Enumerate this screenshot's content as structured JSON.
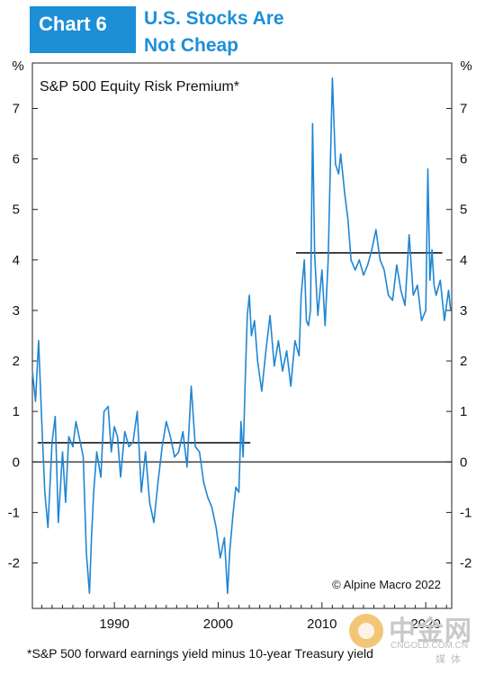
{
  "header": {
    "badge": "Chart 6",
    "title_line1": "U.S. Stocks Are",
    "title_line2": "Not Cheap"
  },
  "colors": {
    "accent": "#1d8fd6",
    "series": "#1f86d3",
    "average_line": "#1a1a1a"
  },
  "chart_data": {
    "type": "line",
    "title": "S&P 500 Equity Risk Premium*",
    "credit": "© Alpine Macro 2022",
    "left_unit": "%",
    "right_unit": "%",
    "xlim": [
      1982.1,
      2022.5
    ],
    "ylim": [
      -2.9,
      7.9
    ],
    "x_ticks": [
      1990,
      2000,
      2010,
      2020
    ],
    "y_ticks": [
      -2,
      -1,
      0,
      1,
      2,
      3,
      4,
      5,
      6,
      7
    ],
    "grid": false,
    "legend": "none",
    "series": [
      {
        "x": [
          1982.1,
          1982.4,
          1982.7,
          1983.0,
          1983.3,
          1983.6,
          1984.0,
          1984.3,
          1984.6,
          1985.0,
          1985.3,
          1985.6,
          1986.0,
          1986.3,
          1986.7,
          1987.0,
          1987.3,
          1987.6,
          1987.8,
          1988.0,
          1988.3,
          1988.7,
          1989.0,
          1989.4,
          1989.7,
          1990.0,
          1990.3,
          1990.6,
          1991.0,
          1991.4,
          1991.8,
          1992.2,
          1992.6,
          1993.0,
          1993.4,
          1993.8,
          1994.2,
          1994.6,
          1995.0,
          1995.4,
          1995.8,
          1996.2,
          1996.6,
          1997.0,
          1997.4,
          1997.8,
          1998.2,
          1998.6,
          1999.0,
          1999.4,
          1999.8,
          2000.2,
          2000.6,
          2000.9,
          2001.1,
          2001.4,
          2001.7,
          2002.0,
          2002.2,
          2002.4,
          2002.6,
          2002.8,
          2003.0,
          2003.2,
          2003.5,
          2003.8,
          2004.2,
          2004.6,
          2005.0,
          2005.4,
          2005.8,
          2006.2,
          2006.6,
          2007.0,
          2007.4,
          2007.8,
          2008.0,
          2008.3,
          2008.5,
          2008.7,
          2008.9,
          2009.1,
          2009.3,
          2009.6,
          2010.0,
          2010.3,
          2010.6,
          2011.0,
          2011.3,
          2011.6,
          2011.8,
          2012.0,
          2012.2,
          2012.5,
          2012.8,
          2013.2,
          2013.6,
          2014.0,
          2014.4,
          2014.8,
          2015.2,
          2015.6,
          2016.0,
          2016.4,
          2016.8,
          2017.2,
          2017.6,
          2018.0,
          2018.4,
          2018.8,
          2019.2,
          2019.6,
          2020.0,
          2020.2,
          2020.4,
          2020.6,
          2020.8,
          2021.0,
          2021.4,
          2021.8,
          2022.2,
          2022.4
        ],
        "y": [
          1.8,
          1.2,
          2.4,
          0.8,
          -0.6,
          -1.3,
          0.4,
          0.9,
          -1.2,
          0.2,
          -0.8,
          0.5,
          0.3,
          0.8,
          0.4,
          0.1,
          -1.8,
          -2.6,
          -1.5,
          -0.6,
          0.2,
          -0.3,
          1.0,
          1.1,
          0.2,
          0.7,
          0.5,
          -0.3,
          0.6,
          0.3,
          0.4,
          1.0,
          -0.6,
          0.2,
          -0.8,
          -1.2,
          -0.4,
          0.3,
          0.8,
          0.5,
          0.1,
          0.2,
          0.6,
          -0.1,
          1.5,
          0.3,
          0.2,
          -0.4,
          -0.7,
          -0.9,
          -1.3,
          -1.9,
          -1.5,
          -2.6,
          -1.8,
          -1.1,
          -0.5,
          -0.6,
          0.8,
          0.1,
          1.6,
          2.9,
          3.3,
          2.5,
          2.8,
          2.0,
          1.4,
          2.2,
          2.9,
          1.9,
          2.4,
          1.8,
          2.2,
          1.5,
          2.4,
          2.1,
          3.3,
          4.0,
          2.8,
          2.7,
          3.0,
          6.7,
          4.1,
          2.9,
          3.8,
          2.7,
          4.0,
          7.6,
          5.9,
          5.7,
          6.1,
          5.7,
          5.3,
          4.8,
          4.0,
          3.8,
          4.0,
          3.7,
          3.9,
          4.2,
          4.6,
          4.0,
          3.8,
          3.3,
          3.2,
          3.9,
          3.4,
          3.1,
          4.5,
          3.3,
          3.5,
          2.8,
          3.0,
          5.8,
          3.6,
          4.2,
          3.5,
          3.3,
          3.6,
          2.8,
          3.4,
          3.0
        ],
        "color": "#1f86d3"
      }
    ],
    "averages": [
      {
        "x": [
          1982.6,
          2003.1
        ],
        "y": 0.38
      },
      {
        "x": [
          2007.5,
          2021.6
        ],
        "y": 4.14
      }
    ]
  },
  "footnote": "*S&P 500 forward earnings yield minus 10-year Treasury yield",
  "watermark": {
    "name": "中金网",
    "url": "CNGOLD.COM.CN",
    "sub": "媒体"
  }
}
